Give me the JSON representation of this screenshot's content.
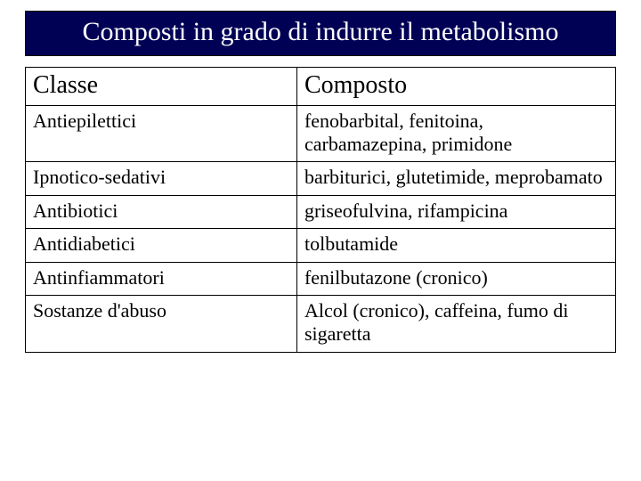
{
  "title": "Composti in grado di indurre il metabolismo",
  "table": {
    "columns": [
      "Classe",
      "Composto"
    ],
    "rows": [
      [
        "Antiepilettici",
        "fenobarbital, fenitoina, carbamazepina, primidone"
      ],
      [
        "Ipnotico-sedativi",
        "barbiturici, glutetimide, meprobamato"
      ],
      [
        "Antibiotici",
        "griseofulvina, rifampicina"
      ],
      [
        "Antidiabetici",
        "tolbutamide"
      ],
      [
        "Antinfiammatori",
        "fenilbutazone (cronico)"
      ],
      [
        "Sostanze d'abuso",
        "Alcol (cronico), caffeina, fumo di sigaretta"
      ]
    ],
    "col_widths_pct": [
      46,
      54
    ],
    "header_fontsize_pt": 21,
    "body_fontsize_pt": 17,
    "title_fontsize_pt": 23,
    "title_bg": "#000055",
    "title_fg": "#ffffff",
    "border_color": "#000000",
    "body_text_color": "#000000",
    "background_color": "#ffffff",
    "font_family": "Times New Roman"
  }
}
